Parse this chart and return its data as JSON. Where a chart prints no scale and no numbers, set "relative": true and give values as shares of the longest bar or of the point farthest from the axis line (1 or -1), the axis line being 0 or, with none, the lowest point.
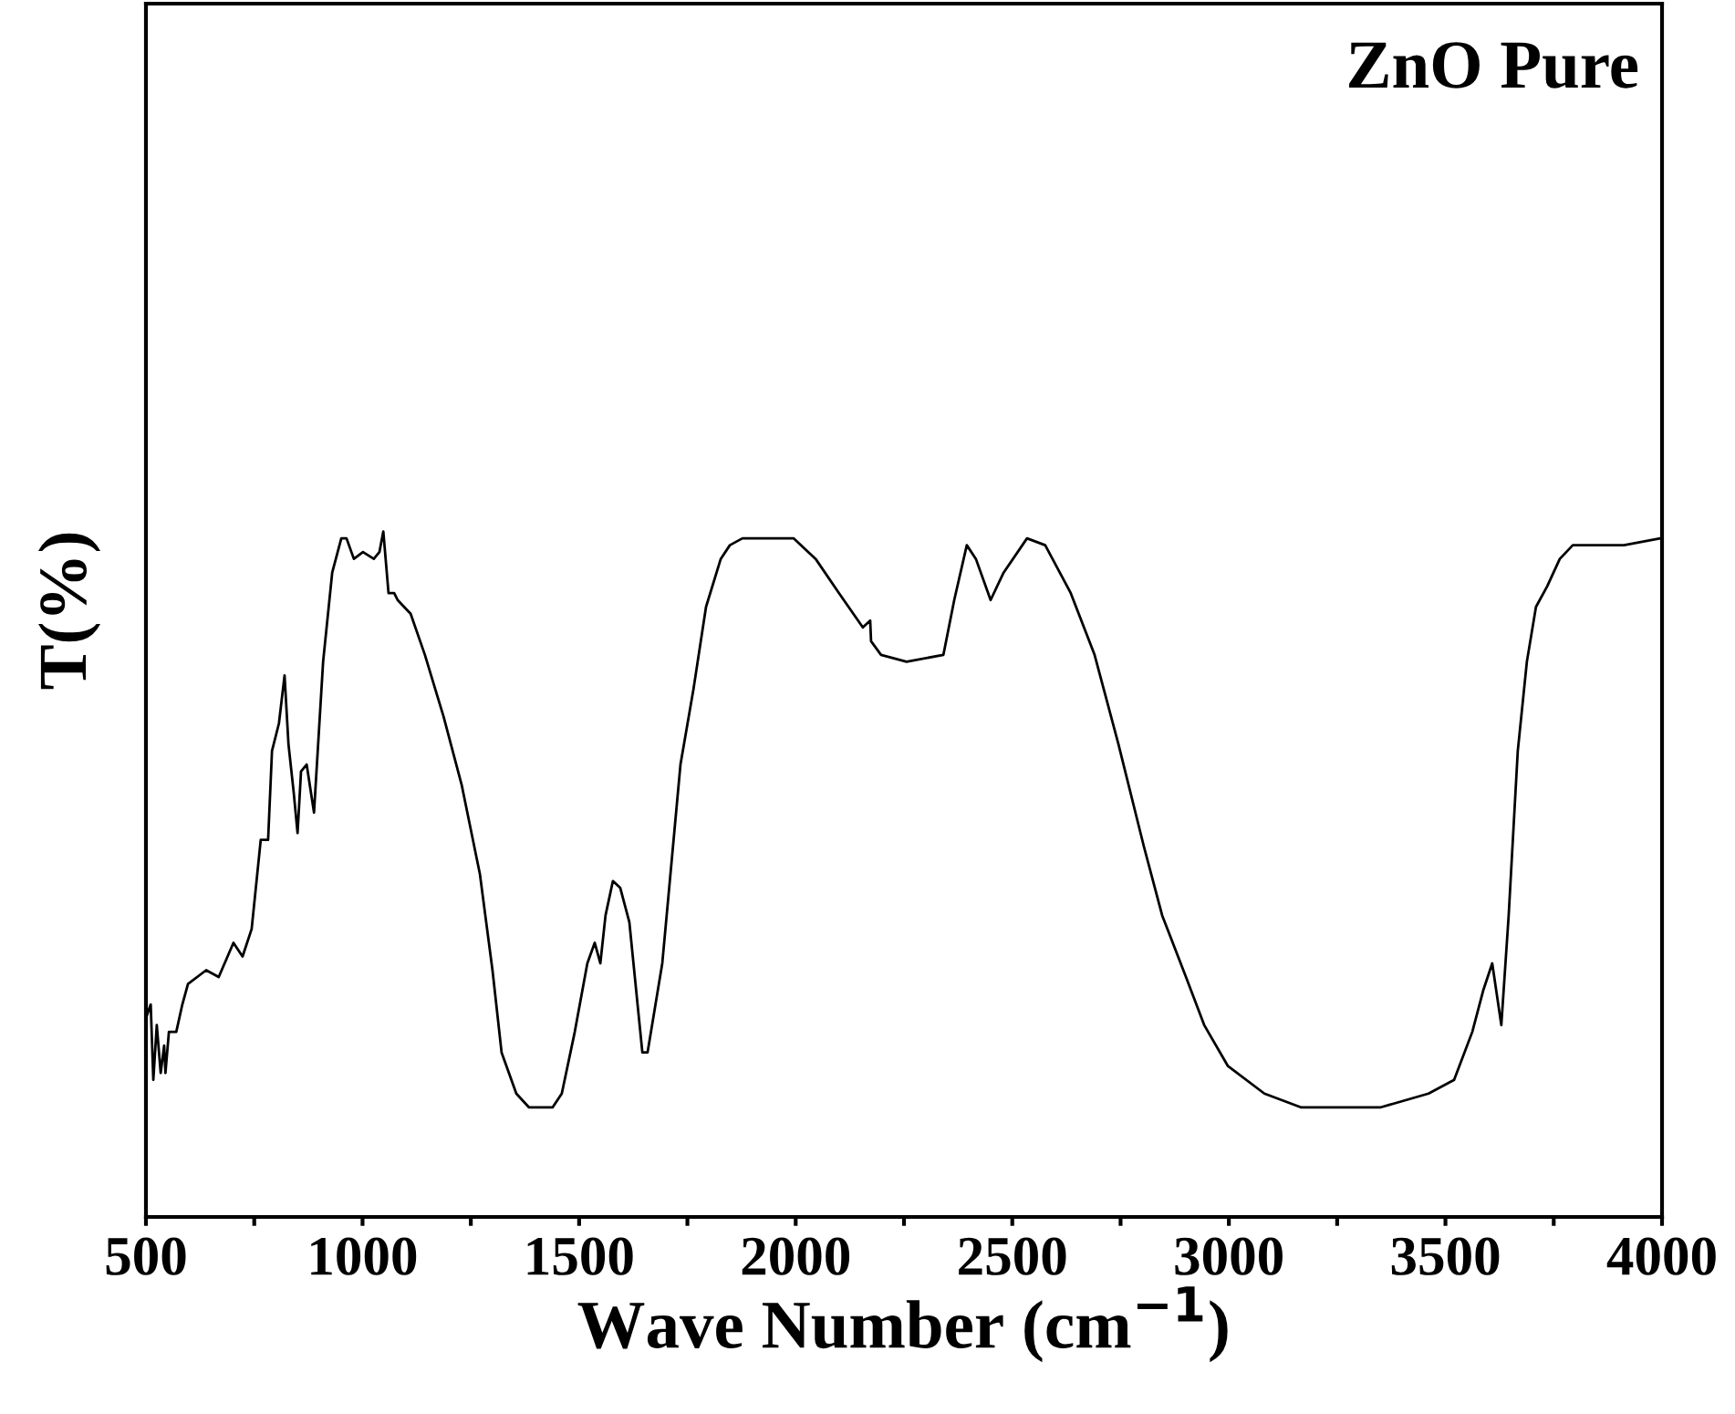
{
  "chart_data": {
    "type": "line",
    "relative": true,
    "xlabel": "Wave Number (cm$^{−1}$)",
    "ylabel": "T(%)",
    "annotations": [
      "ZnO Pure"
    ],
    "xlim": [
      500,
      4000
    ],
    "xticks": [
      500,
      {
        "value": 750,
        "label": null
      },
      1000,
      {
        "value": 1250,
        "label": null
      },
      1500,
      {
        "value": 1750,
        "label": null
      },
      2000,
      {
        "value": 2250,
        "label": null
      },
      2500,
      {
        "value": 2750,
        "label": null
      },
      3000,
      {
        "value": 3250,
        "label": null
      },
      3500,
      {
        "value": 3750,
        "label": null
      },
      4000
    ],
    "tick_labels": "x",
    "marker": "none",
    "line_style": "solid",
    "series": [
      {
        "color": "#000000",
        "x": [
          500,
          511,
          517,
          525,
          534,
          542,
          545,
          553,
          570,
          584,
          597,
          639,
          668,
          702,
          723,
          744,
          765,
          782,
          791,
          807,
          820,
          829,
          841,
          850,
          858,
          871,
          888,
          909,
          930,
          951,
          963,
          980,
          1001,
          1026,
          1039,
          1048,
          1060,
          1073,
          1081,
          1111,
          1144,
          1187,
          1229,
          1271,
          1300,
          1321,
          1355,
          1384,
          1439,
          1460,
          1490,
          1519,
          1536,
          1549,
          1561,
          1578,
          1595,
          1616,
          1646,
          1658,
          1692,
          1721,
          1734,
          1764,
          1793,
          1827,
          1848,
          1877,
          1995,
          2046,
          2100,
          2155,
          2172,
          2174,
          2197,
          2256,
          2341,
          2366,
          2395,
          2416,
          2450,
          2480,
          2534,
          2576,
          2635,
          2690,
          2745,
          2804,
          2846,
          2901,
          2943,
          2998,
          3082,
          3166,
          3351,
          3461,
          3520,
          3562,
          3587,
          3608,
          3629,
          3646,
          3667,
          3688,
          3709,
          3735,
          3764,
          3794,
          3840,
          3912,
          3996
        ],
        "values": [
          0.29,
          0.31,
          0.2,
          0.28,
          0.21,
          0.25,
          0.21,
          0.27,
          0.27,
          0.31,
          0.34,
          0.36,
          0.35,
          0.4,
          0.38,
          0.42,
          0.55,
          0.55,
          0.68,
          0.72,
          0.79,
          0.69,
          0.62,
          0.56,
          0.65,
          0.66,
          0.59,
          0.81,
          0.94,
          0.99,
          0.99,
          0.96,
          0.97,
          0.96,
          0.97,
          1.0,
          0.91,
          0.91,
          0.9,
          0.88,
          0.82,
          0.73,
          0.63,
          0.5,
          0.36,
          0.24,
          0.18,
          0.16,
          0.16,
          0.18,
          0.27,
          0.37,
          0.4,
          0.37,
          0.44,
          0.49,
          0.48,
          0.43,
          0.24,
          0.24,
          0.37,
          0.57,
          0.66,
          0.77,
          0.89,
          0.96,
          0.98,
          0.99,
          0.99,
          0.96,
          0.91,
          0.86,
          0.87,
          0.84,
          0.82,
          0.81,
          0.82,
          0.9,
          0.98,
          0.96,
          0.9,
          0.94,
          0.99,
          0.98,
          0.91,
          0.82,
          0.69,
          0.54,
          0.44,
          0.35,
          0.28,
          0.22,
          0.18,
          0.16,
          0.16,
          0.18,
          0.2,
          0.27,
          0.33,
          0.37,
          0.28,
          0.44,
          0.68,
          0.81,
          0.89,
          0.92,
          0.96,
          0.98,
          0.98,
          0.98,
          0.99
        ]
      }
    ]
  }
}
